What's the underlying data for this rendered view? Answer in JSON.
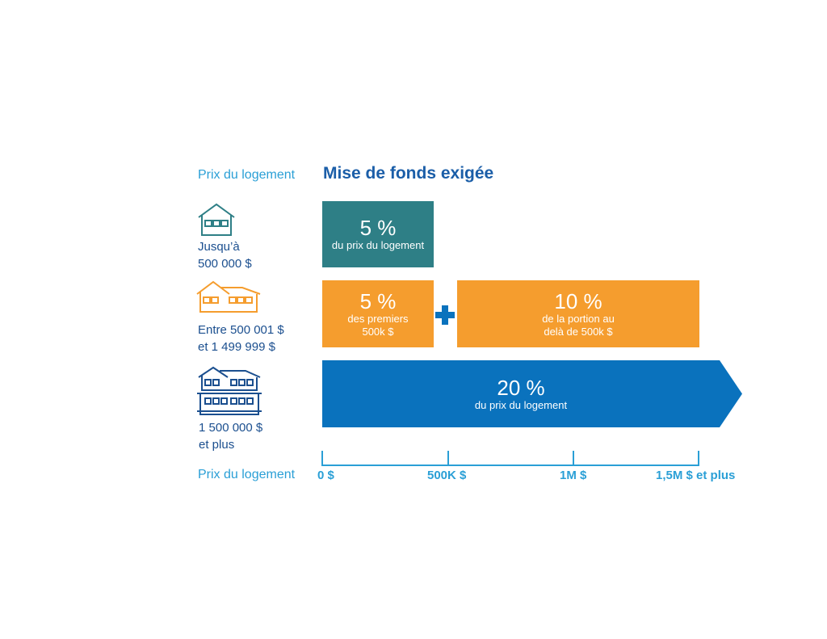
{
  "header": {
    "price_label": "Prix du logement",
    "title": "Mise de fonds exigée"
  },
  "rows": [
    {
      "label_line1": "Jusqu’à",
      "label_line2": "500 000 $",
      "icon": "small-house-icon",
      "segments": [
        {
          "pct": "5 %",
          "desc_line1": "du prix du logement",
          "desc_line2": "",
          "color": "#2e7f86"
        }
      ]
    },
    {
      "label_line1": "Entre 500 001 $",
      "label_line2": "et 1 499 999 $",
      "icon": "medium-house-icon",
      "segments": [
        {
          "pct": "5 %",
          "desc_line1": "des premiers",
          "desc_line2": "500k $",
          "color": "#f59d2e"
        },
        {
          "pct": "10 %",
          "desc_line1": "de la portion au",
          "desc_line2": "delà de 500k $",
          "color": "#f59d2e"
        }
      ],
      "plus_icon": "plus-icon"
    },
    {
      "label_line1": "1 500 000 $",
      "label_line2": "et plus",
      "icon": "large-house-icon",
      "segments": [
        {
          "pct": "20 %",
          "desc_line1": "du prix du logement",
          "desc_line2": "",
          "color": "#0a72bd"
        }
      ]
    }
  ],
  "axis": {
    "label": "Prix du logement",
    "ticks": [
      "0 $",
      "500K $",
      "1M $",
      "1,5M $ et plus"
    ],
    "color": "#2a9fd6"
  }
}
